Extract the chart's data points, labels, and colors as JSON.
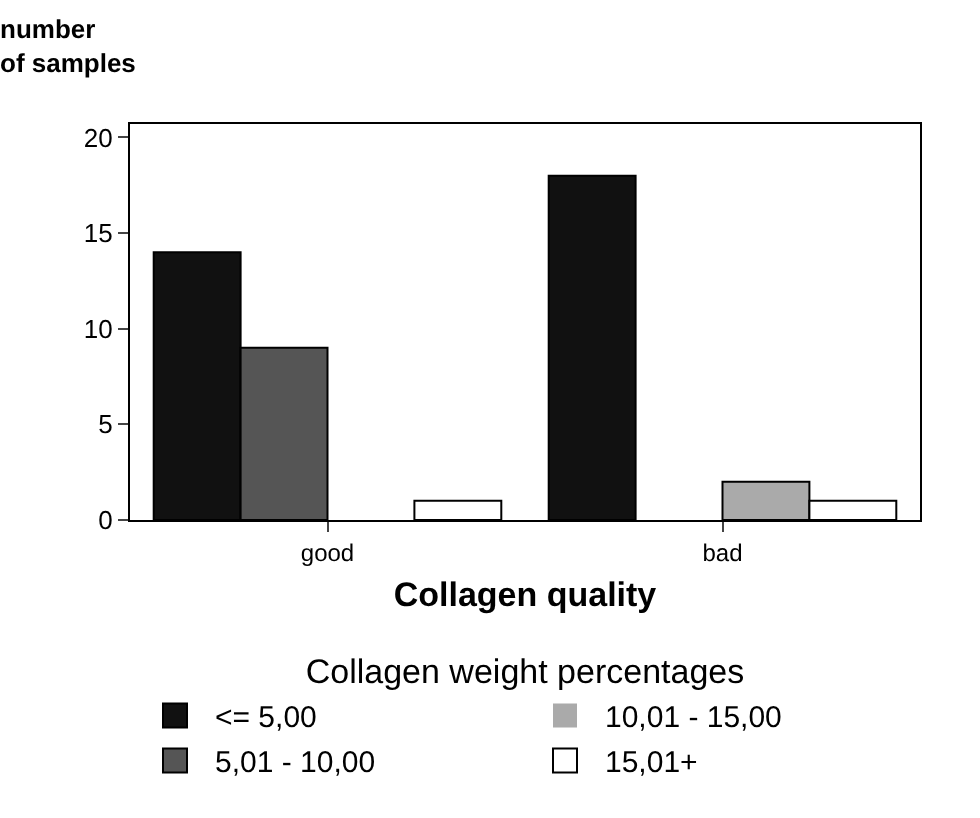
{
  "chart_data": {
    "type": "bar",
    "xlabel": "Collagen quality",
    "ylabel": "number\nof samples",
    "legend_title": "Collagen weight percentages",
    "categories": [
      "good",
      "bad"
    ],
    "series": [
      {
        "name": "<= 5,00",
        "color": "#111111",
        "values": [
          14,
          18
        ]
      },
      {
        "name": "5,01 - 10,00",
        "color": "#555555",
        "values": [
          9,
          0
        ]
      },
      {
        "name": "10,01 - 15,00",
        "color": "#aaaaaa",
        "values": [
          0,
          2
        ]
      },
      {
        "name": "15,01+",
        "color": "#ffffff",
        "values": [
          1,
          1
        ]
      }
    ],
    "ylim": [
      0,
      20.7
    ],
    "yticks": [
      0,
      5,
      10,
      15,
      20
    ],
    "legend": "bottom"
  }
}
